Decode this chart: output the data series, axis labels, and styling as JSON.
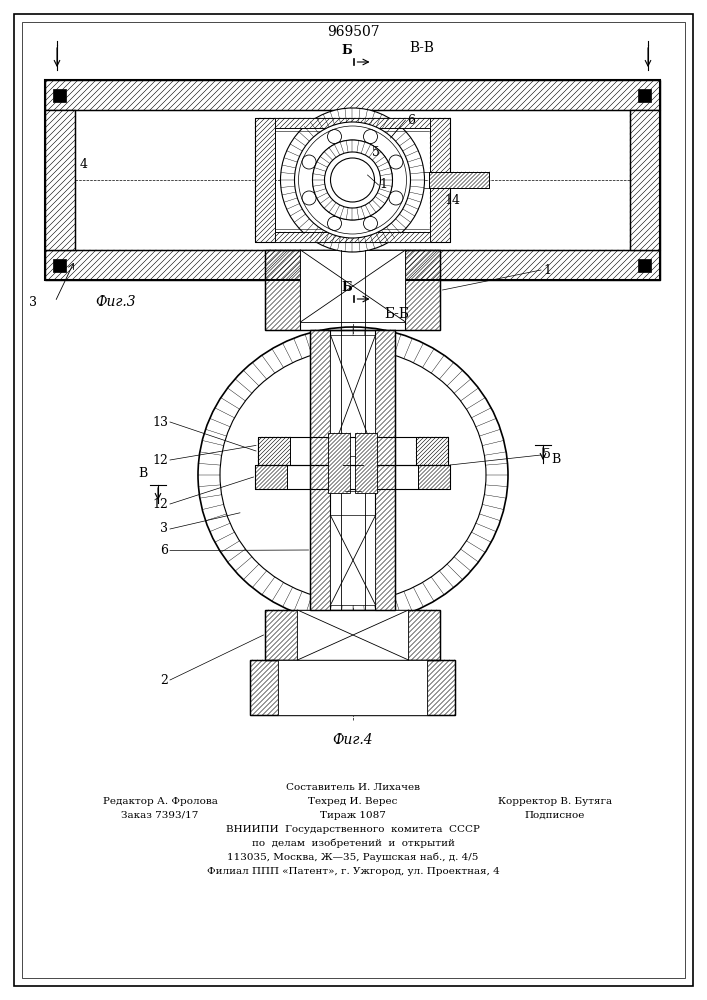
{
  "patent_number": "969507",
  "fig3_label": "Фиг.3",
  "fig4_label": "Фиг.4",
  "section_bb": "Б-Б",
  "section_vv": "В-В",
  "letter_b": "Б",
  "letter_v": "В",
  "footer_author": "Составитель И. Лихачев",
  "footer_line1_left": "Редактор А. Фролова",
  "footer_line1_mid": "Техред И. Верес",
  "footer_line1_right": "Корректор В. Бутяга",
  "footer_line2_left": "Заказ 7393/17",
  "footer_line2_mid": "Тираж 1087",
  "footer_line2_right": "Подписное",
  "footer_line3": "ВНИИПИ  Государственного  комитета  СССР",
  "footer_line4": "по  делам  изобретений  и  открытий",
  "footer_line5": "113035, Москва, Ж—35, Раушская наб., д. 4/5",
  "footer_line6": "Филиал ППП «Патент», г. Ужгород, ул. Проектная, 4",
  "bg_color": "#ffffff",
  "line_color": "#000000"
}
